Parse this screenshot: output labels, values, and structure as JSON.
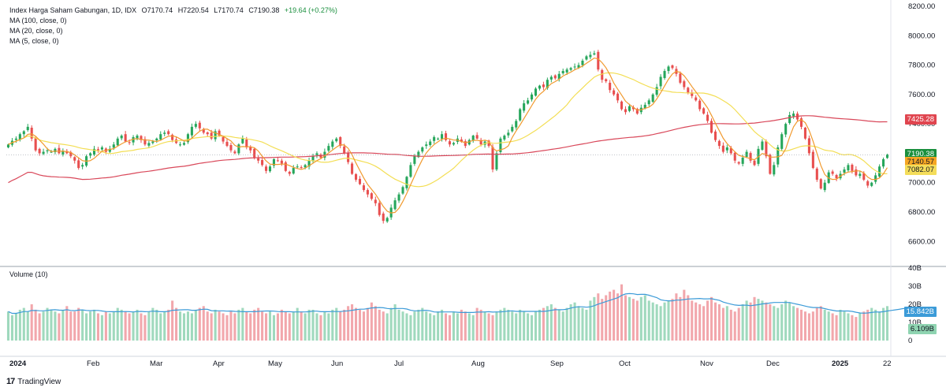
{
  "header": {
    "symbol_line": "Index Harga Saham Gabungan, 1D, IDX",
    "open": "O7170.74",
    "high": "H7220.54",
    "low": "L7170.74",
    "close": "C7190.38",
    "change": "+19.64 (+0.27%)",
    "ma100": "MA (100, close, 0)",
    "ma20": "MA (20, close, 0)",
    "ma5": "MA (5, close, 0)"
  },
  "volume_pane": {
    "title": "Volume (10)"
  },
  "price_tags": [
    {
      "value": "7425.28",
      "color": "#e0454f",
      "text_color": "#ffffff"
    },
    {
      "value": "7190.38",
      "color": "#1a8f3e",
      "text_color": "#ffffff"
    },
    {
      "value": "7140.57",
      "color": "#f5a623",
      "text_color": "#131722"
    },
    {
      "value": "7082.07",
      "color": "#f4dd5a",
      "text_color": "#131722"
    }
  ],
  "volume_tags": [
    {
      "value": "15.842B",
      "color": "#3c9bd8",
      "text_color": "#ffffff"
    },
    {
      "value": "6.109B",
      "color": "#8fd4b1",
      "text_color": "#131722"
    }
  ],
  "brand": {
    "name": "TradingView"
  },
  "chart_data": {
    "type": "candlestick",
    "y_axis": {
      "ticks": [
        6600,
        6800,
        7000,
        7200,
        7400,
        7600,
        7800,
        8000,
        8200
      ],
      "labels": [
        "6600.00",
        "6800.00",
        "7000.00",
        "7200.00",
        "7400.00",
        "7600.00",
        "7800.00",
        "8000.00",
        "8200.00"
      ],
      "range": [
        6430,
        8200
      ]
    },
    "volume_axis": {
      "ticks": [
        0,
        10,
        20,
        30,
        40
      ],
      "labels": [
        "0",
        "10B",
        "20B",
        "30B",
        "40B"
      ],
      "range": [
        0,
        40
      ]
    },
    "x_axis": {
      "labels": [
        "2024",
        "Feb",
        "Mar",
        "Apr",
        "May",
        "Jun",
        "Jul",
        "Aug",
        "Sep",
        "Oct",
        "Nov",
        "Dec",
        "2025",
        "22"
      ],
      "bold": [
        "2024",
        "2025"
      ]
    },
    "colors": {
      "up": "#26a65b",
      "down": "#e84f4f",
      "vol_up": "#9fd9bd",
      "vol_down": "#f2a7ac",
      "ma100": "#d9485a",
      "ma20": "#f3de54",
      "ma5": "#f19a2e",
      "vol_ma": "#3c9bd8"
    },
    "closes": [
      7260,
      7285,
      7300,
      7330,
      7350,
      7380,
      7300,
      7220,
      7200,
      7210,
      7220,
      7210,
      7230,
      7200,
      7215,
      7200,
      7180,
      7150,
      7100,
      7120,
      7180,
      7200,
      7230,
      7220,
      7240,
      7210,
      7230,
      7260,
      7300,
      7320,
      7280,
      7270,
      7310,
      7320,
      7290,
      7260,
      7270,
      7280,
      7300,
      7330,
      7340,
      7330,
      7290,
      7270,
      7260,
      7270,
      7330,
      7380,
      7400,
      7370,
      7340,
      7330,
      7300,
      7350,
      7320,
      7280,
      7250,
      7220,
      7200,
      7260,
      7300,
      7240,
      7220,
      7170,
      7150,
      7120,
      7080,
      7110,
      7160,
      7150,
      7130,
      7080,
      7060,
      7100,
      7110,
      7100,
      7120,
      7150,
      7180,
      7200,
      7170,
      7210,
      7250,
      7280,
      7300,
      7250,
      7200,
      7140,
      7060,
      7020,
      6990,
      6950,
      6920,
      6890,
      6860,
      6780,
      6740,
      6760,
      6830,
      6880,
      6920,
      6970,
      7040,
      7120,
      7180,
      7210,
      7240,
      7260,
      7280,
      7310,
      7300,
      7330,
      7290,
      7260,
      7270,
      7300,
      7280,
      7250,
      7290,
      7320,
      7300,
      7260,
      7280,
      7250,
      7090,
      7200,
      7300,
      7320,
      7340,
      7380,
      7420,
      7500,
      7540,
      7560,
      7600,
      7640,
      7660,
      7650,
      7700,
      7720,
      7710,
      7740,
      7760,
      7770,
      7780,
      7790,
      7800,
      7830,
      7860,
      7870,
      7880,
      7770,
      7700,
      7690,
      7630,
      7600,
      7560,
      7500,
      7480,
      7520,
      7500,
      7470,
      7510,
      7530,
      7560,
      7600,
      7650,
      7720,
      7760,
      7790,
      7780,
      7740,
      7680,
      7650,
      7610,
      7590,
      7560,
      7500,
      7470,
      7420,
      7340,
      7290,
      7250,
      7210,
      7240,
      7200,
      7150,
      7130,
      7170,
      7210,
      7150,
      7120,
      7230,
      7280,
      7180,
      7060,
      7120,
      7240,
      7330,
      7400,
      7460,
      7470,
      7430,
      7380,
      7300,
      7200,
      7100,
      7020,
      6960,
      7000,
      7070,
      7060,
      7030,
      7060,
      7090,
      7120,
      7080,
      7050,
      7060,
      7020,
      6980,
      7000,
      7050,
      7110,
      7160,
      7190
    ],
    "volumes": [
      16,
      14,
      15,
      17,
      18,
      16,
      20,
      17,
      15,
      16,
      18,
      17,
      16,
      15,
      17,
      19,
      16,
      16,
      18,
      17,
      15,
      16,
      17,
      15,
      14,
      16,
      15,
      16,
      18,
      17,
      16,
      15,
      16,
      17,
      15,
      14,
      16,
      18,
      17,
      15,
      16,
      17,
      22,
      18,
      16,
      15,
      16,
      15,
      17,
      18,
      19,
      16,
      15,
      17,
      16,
      15,
      14,
      16,
      15,
      17,
      18,
      16,
      15,
      17,
      18,
      16,
      15,
      16,
      14,
      15,
      17,
      16,
      15,
      16,
      18,
      16,
      15,
      17,
      17,
      15,
      14,
      16,
      15,
      17,
      18,
      16,
      17,
      19,
      20,
      18,
      17,
      16,
      18,
      21,
      19,
      17,
      16,
      15,
      18,
      20,
      17,
      16,
      15,
      14,
      16,
      17,
      18,
      16,
      15,
      14,
      16,
      17,
      15,
      14,
      16,
      15,
      17,
      16,
      15,
      14,
      18,
      17,
      16,
      15,
      14,
      16,
      17,
      18,
      17,
      16,
      15,
      17,
      16,
      15,
      14,
      16,
      17,
      18,
      19,
      20,
      18,
      17,
      16,
      18,
      20,
      21,
      19,
      18,
      17,
      22,
      24,
      26,
      23,
      25,
      27,
      28,
      26,
      31,
      25,
      24,
      23,
      22,
      24,
      25,
      22,
      21,
      20,
      19,
      21,
      22,
      23,
      26,
      24,
      28,
      25,
      22,
      21,
      20,
      19,
      22,
      24,
      21,
      20,
      18,
      19,
      17,
      16,
      18,
      20,
      22,
      21,
      24,
      23,
      22,
      21,
      20,
      19,
      18,
      20,
      22,
      21,
      19,
      18,
      17,
      16,
      15,
      16,
      18,
      19,
      17,
      16,
      15,
      14,
      17,
      16,
      15,
      14,
      13,
      15,
      16,
      17,
      18,
      17,
      16,
      18,
      19,
      17,
      16,
      18,
      20,
      19,
      6.1
    ]
  }
}
